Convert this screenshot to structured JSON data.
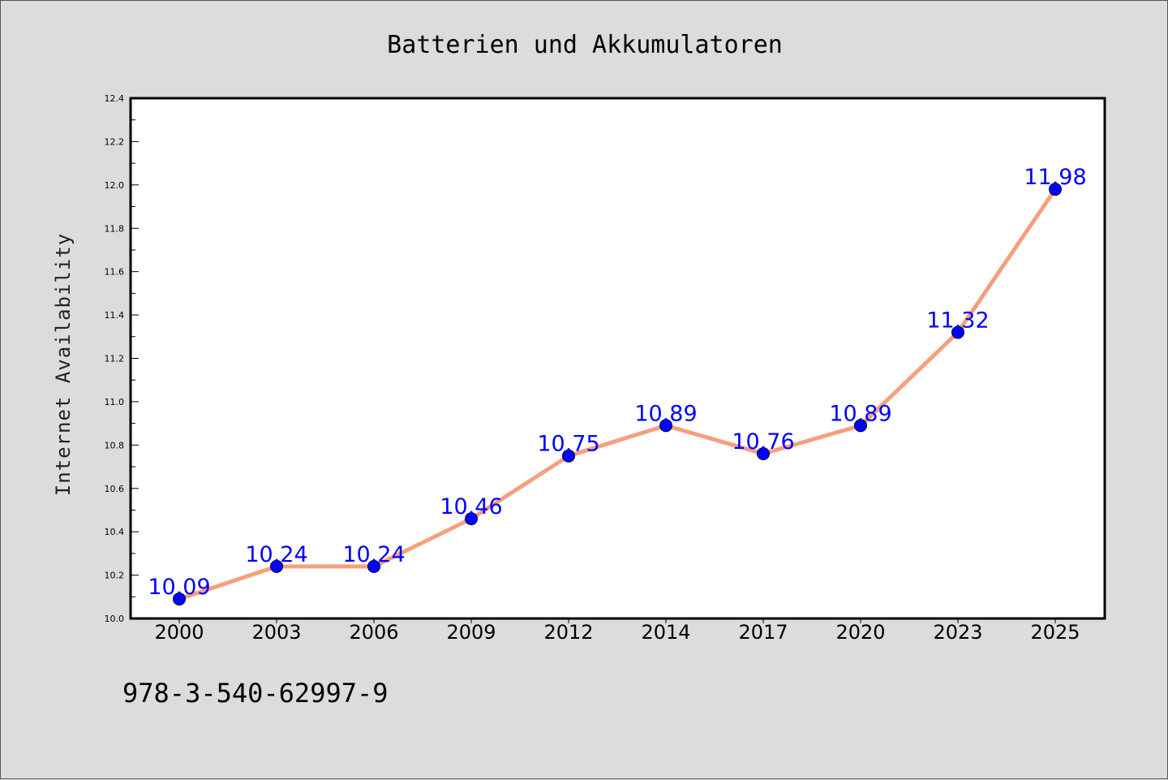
{
  "chart_data": {
    "type": "line",
    "title": "Batterien und Akkumulatoren",
    "xlabel": "",
    "ylabel": "Internet Availability",
    "categories": [
      "2000",
      "2003",
      "2006",
      "2009",
      "2012",
      "2014",
      "2017",
      "2020",
      "2023",
      "2025"
    ],
    "series": [
      {
        "values": [
          10.09,
          10.24,
          10.24,
          10.46,
          10.75,
          10.89,
          10.76,
          10.89,
          11.32,
          11.98
        ],
        "data_labels": [
          "10.09",
          "10.24",
          "10.24",
          "10.46",
          "10.75",
          "10.89",
          "10.76",
          "10.89",
          "11.32",
          "11.98"
        ]
      }
    ],
    "ylim": [
      10.0,
      12.4
    ],
    "yticks": [
      "10.0",
      "10.2",
      "10.4",
      "10.6",
      "10.8",
      "11.0",
      "11.2",
      "11.4",
      "11.6",
      "11.8",
      "12.0",
      "12.2",
      "12.4"
    ],
    "grid": false,
    "legend": "none",
    "colors": {
      "line": "#f4a07f",
      "marker": "#0000ff",
      "data_label": "#0000ff",
      "plot_background": "#ffffff",
      "page_background": "#dcdcdc"
    }
  },
  "footer_text": "978-3-540-62997-9"
}
